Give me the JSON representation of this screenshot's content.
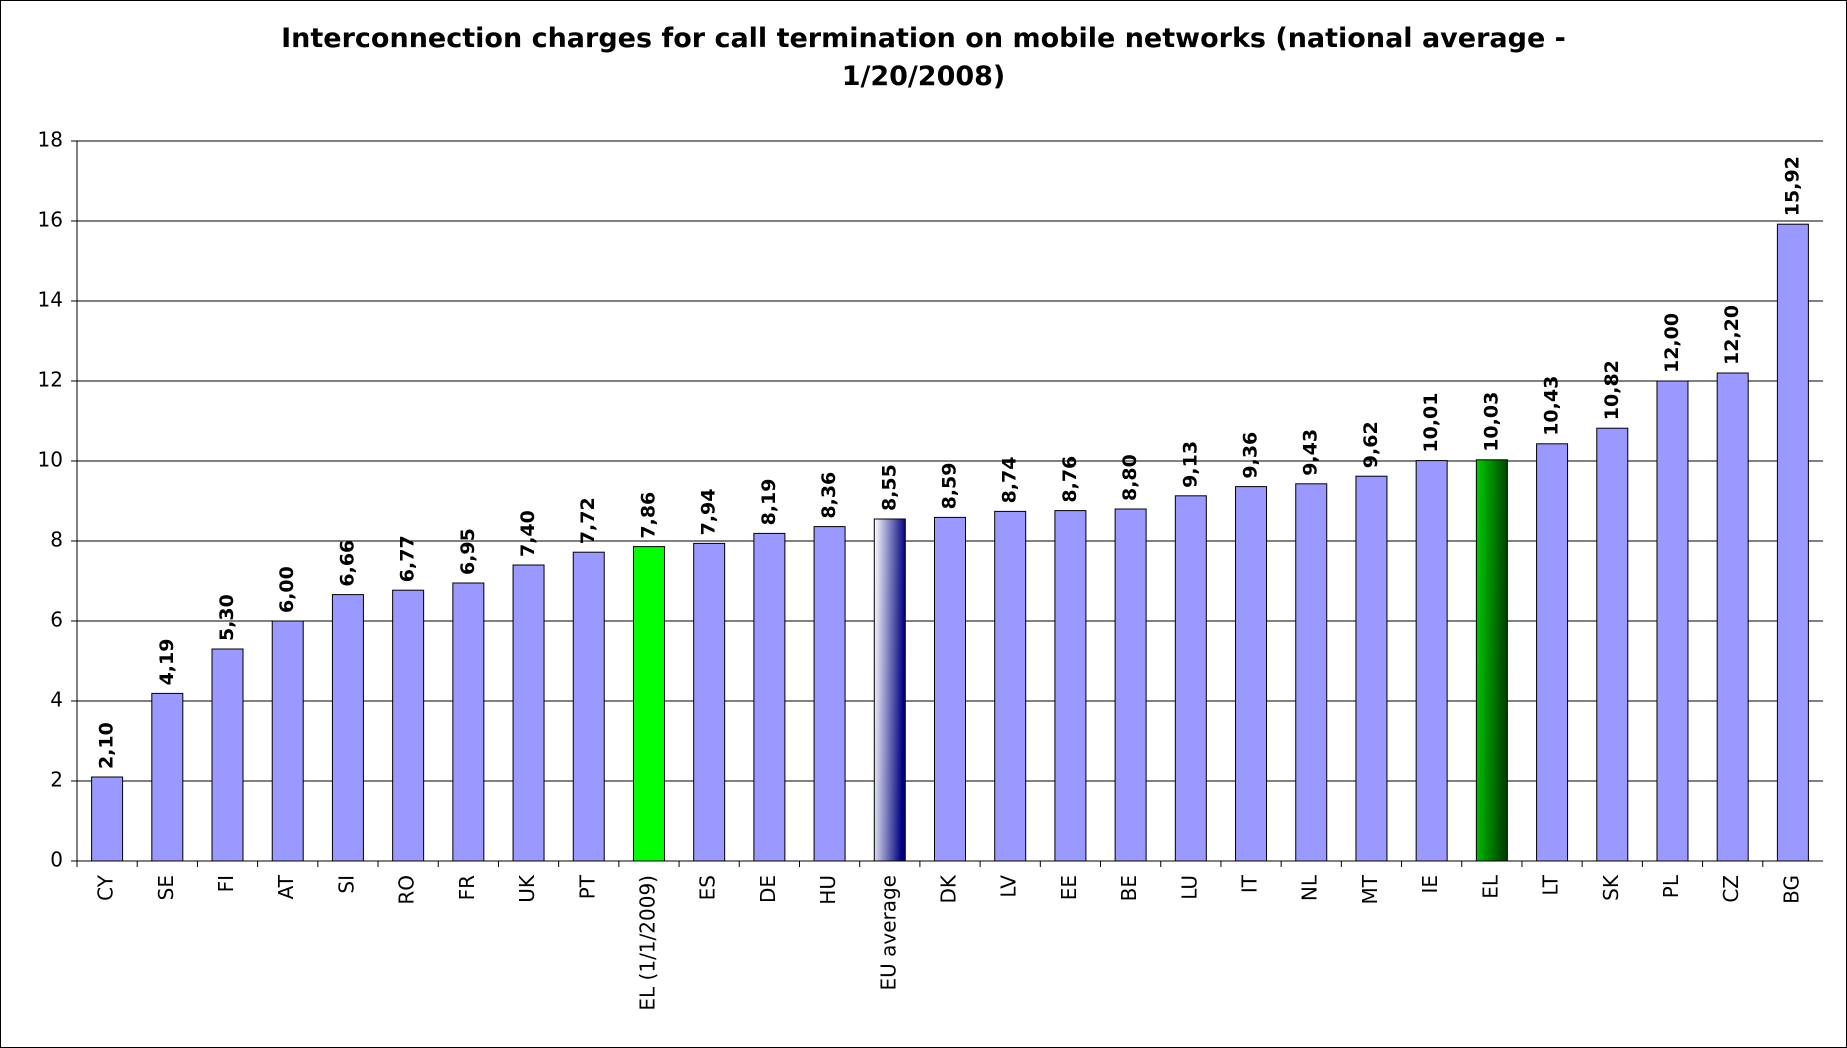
{
  "chart_data": {
    "type": "bar",
    "title": "Interconnection charges for call termination on mobile networks (national average - 1/20/2008)",
    "categories": [
      "CY",
      "SE",
      "FI",
      "AT",
      "SI",
      "RO",
      "FR",
      "UK",
      "PT",
      "EL (1/1/2009)",
      "ES",
      "DE",
      "HU",
      "EU average",
      "DK",
      "LV",
      "EE",
      "BE",
      "LU",
      "IT",
      "NL",
      "MT",
      "IE",
      "EL",
      "LT",
      "SK",
      "PL",
      "CZ",
      "BG"
    ],
    "values": [
      2.1,
      4.19,
      5.3,
      6.0,
      6.66,
      6.77,
      6.95,
      7.4,
      7.72,
      7.86,
      7.94,
      8.19,
      8.36,
      8.55,
      8.59,
      8.74,
      8.76,
      8.8,
      9.13,
      9.36,
      9.43,
      9.62,
      10.01,
      10.03,
      10.43,
      10.82,
      12.0,
      12.2,
      15.92
    ],
    "value_labels": [
      "2,10",
      "4,19",
      "5,30",
      "6,00",
      "6,66",
      "6,77",
      "6,95",
      "7,40",
      "7,72",
      "7,86",
      "7,94",
      "8,19",
      "8,36",
      "8,55",
      "8,59",
      "8,74",
      "8,76",
      "8,80",
      "9,13",
      "9,36",
      "9,43",
      "9,62",
      "10,01",
      "10,03",
      "10,43",
      "10,82",
      "12,00",
      "12,20",
      "15,92"
    ],
    "colors": [
      "#9999ff",
      "#9999ff",
      "#9999ff",
      "#9999ff",
      "#9999ff",
      "#9999ff",
      "#9999ff",
      "#9999ff",
      "#9999ff",
      "#00ff00",
      "#9999ff",
      "#9999ff",
      "#9999ff",
      [
        "#ffffff",
        "#000080"
      ],
      "#9999ff",
      "#9999ff",
      "#9999ff",
      "#9999ff",
      "#9999ff",
      "#9999ff",
      "#9999ff",
      "#9999ff",
      "#9999ff",
      [
        "#00cc00",
        "#004400"
      ],
      "#9999ff",
      "#9999ff",
      "#9999ff",
      "#9999ff",
      "#9999ff"
    ],
    "ylim": [
      0,
      18
    ],
    "yticks": [
      0,
      2,
      4,
      6,
      8,
      10,
      12,
      14,
      16,
      18
    ],
    "grid": true
  }
}
